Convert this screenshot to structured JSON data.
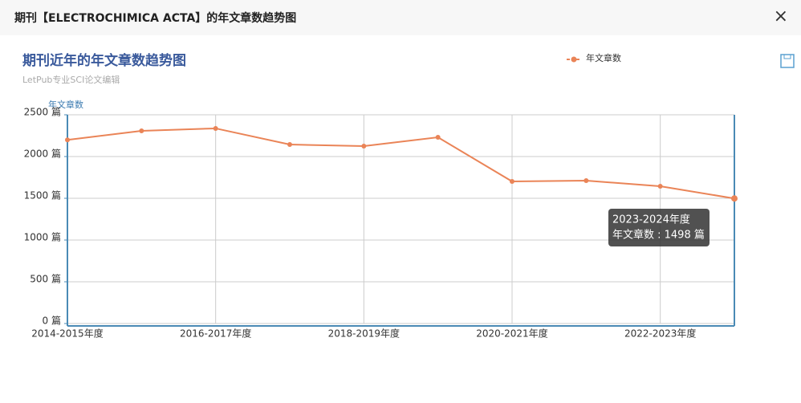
{
  "header": {
    "title": "期刊【ELECTROCHIMICA ACTA】的年文章数趋势图"
  },
  "chart_data": {
    "type": "line",
    "title": "期刊近年的年文章数趋势图",
    "subtitle": "LetPub专业SCI论文编辑",
    "y_label": "年文章数",
    "categories": [
      "2014-2015年度",
      null,
      "2016-2017年度",
      null,
      "2018-2019年度",
      null,
      "2020-2021年度",
      null,
      "2022-2023年度",
      null
    ],
    "series": [
      {
        "name": "年文章数",
        "color": "#ea8457",
        "values": [
          2200,
          2308,
          2337,
          2144,
          2125,
          2231,
          1702,
          1712,
          1644,
          1498
        ]
      }
    ],
    "ylim": [
      0,
      2500
    ],
    "yticks": [
      {
        "value": 0,
        "label": "0 篇"
      },
      {
        "value": 500,
        "label": "500 篇"
      },
      {
        "value": 1000,
        "label": "1000 篇"
      },
      {
        "value": 1500,
        "label": "1500 篇"
      },
      {
        "value": 2000,
        "label": "2000 篇"
      },
      {
        "value": 2500,
        "label": "2500 篇"
      }
    ],
    "grid": true,
    "legend": "top-right",
    "tooltip": {
      "title": "2023-2024年度",
      "text": "年文章数 : 1498 篇"
    }
  }
}
